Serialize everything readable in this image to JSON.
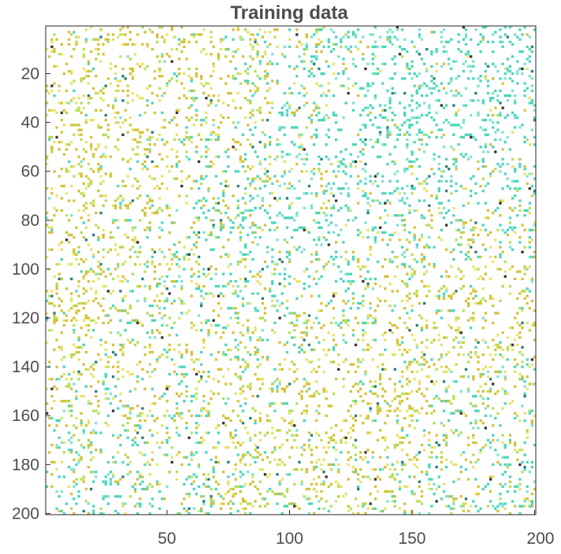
{
  "chart_data": {
    "type": "heatmap",
    "title": "Training data",
    "xlabel": "",
    "ylabel": "",
    "xlim": [
      0.5,
      200.5
    ],
    "ylim": [
      0.5,
      200.5
    ],
    "y_reversed": true,
    "x_ticks": [
      50,
      100,
      150,
      200
    ],
    "y_ticks": [
      20,
      40,
      60,
      80,
      100,
      120,
      140,
      160,
      180,
      200
    ],
    "grid": false,
    "legend": "none",
    "colormap": "parula",
    "background_value": "missing",
    "grid_size": [
      200,
      200
    ],
    "cluster_centers": [
      {
        "x": 32,
        "y": 35,
        "class": "yellow"
      },
      {
        "x": 75,
        "y": 28,
        "class": "yellow"
      },
      {
        "x": 22,
        "y": 120,
        "class": "yellow"
      },
      {
        "x": 60,
        "y": 160,
        "class": "yellow"
      },
      {
        "x": 125,
        "y": 130,
        "class": "yellow"
      },
      {
        "x": 170,
        "y": 100,
        "class": "yellow"
      },
      {
        "x": 110,
        "y": 180,
        "class": "yellow"
      },
      {
        "x": 185,
        "y": 160,
        "class": "yellow"
      },
      {
        "x": 140,
        "y": 30,
        "class": "cyan"
      },
      {
        "x": 120,
        "y": 65,
        "class": "cyan"
      },
      {
        "x": 90,
        "y": 100,
        "class": "cyan"
      },
      {
        "x": 175,
        "y": 40,
        "class": "cyan"
      },
      {
        "x": 190,
        "y": 190,
        "class": "cyan"
      },
      {
        "x": 40,
        "y": 190,
        "class": "cyan"
      }
    ],
    "colors": {
      "cyan": "#4cd6bc",
      "cyan_light": "#7fe3cf",
      "teal_dark": "#2a7f7a",
      "yellow": "#d4c238",
      "yellow_light": "#e6e36a",
      "lime": "#b7df5a",
      "dark": "#3a3430",
      "frame": "#262626",
      "text": "#4d4d4d"
    }
  }
}
